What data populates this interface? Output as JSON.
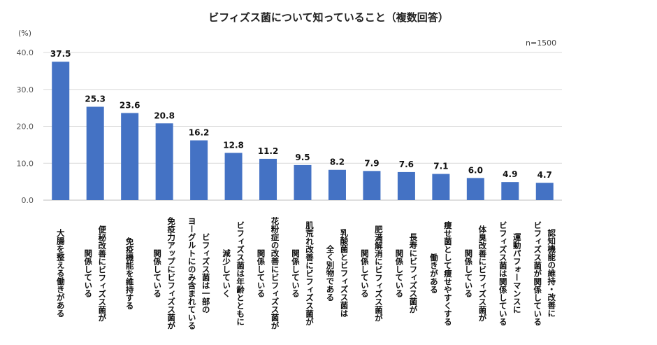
{
  "chart_data": {
    "type": "bar",
    "title": "ビフィズス菌について知っていること（複数回答）",
    "ylabel": "(%)",
    "note": "n=1500",
    "ylim": [
      0,
      40
    ],
    "yticks": [
      "0.0",
      "10.0",
      "20.0",
      "30.0",
      "40.0"
    ],
    "grid": true,
    "bar_color": "#4472C4",
    "categories": [
      "大腸を整える働きがある",
      "便秘改善にビフィズス菌が\n関係している",
      "免疫機能を維持する",
      "免疫力アップにビフィズス菌が\n関係している",
      "ビフィズス菌は一部の\nヨーグルトにのみ含まれている",
      "ビフィズス菌は年齢とともに\n減少していく",
      "花粉症の改善にビフィズス菌が\n関係している",
      "肌荒れ改善にビフィズス菌が\n関係している",
      "乳酸菌とビフィズス菌は\n全く別物である",
      "肥満解消にビフィズス菌が\n関係している",
      "長寿にビフィズス菌が\n関係している",
      "痩せ菌として痩せやすくする\n働きがある",
      "体臭改善にビフィズス菌が\n関係している",
      "運動パフォーマンスに\nビフィズス菌は関係している",
      "認知機能の維持・改善に\nビフィズス菌が関係している"
    ],
    "values": [
      37.5,
      25.3,
      23.6,
      20.8,
      16.2,
      12.8,
      11.2,
      9.5,
      8.2,
      7.9,
      7.6,
      7.1,
      6.0,
      4.9,
      4.7
    ],
    "data_labels": [
      "37.5",
      "25.3",
      "23.6",
      "20.8",
      "16.2",
      "12.8",
      "11.2",
      "9.5",
      "8.2",
      "7.9",
      "7.6",
      "7.1",
      "6.0",
      "4.9",
      "4.7"
    ]
  }
}
